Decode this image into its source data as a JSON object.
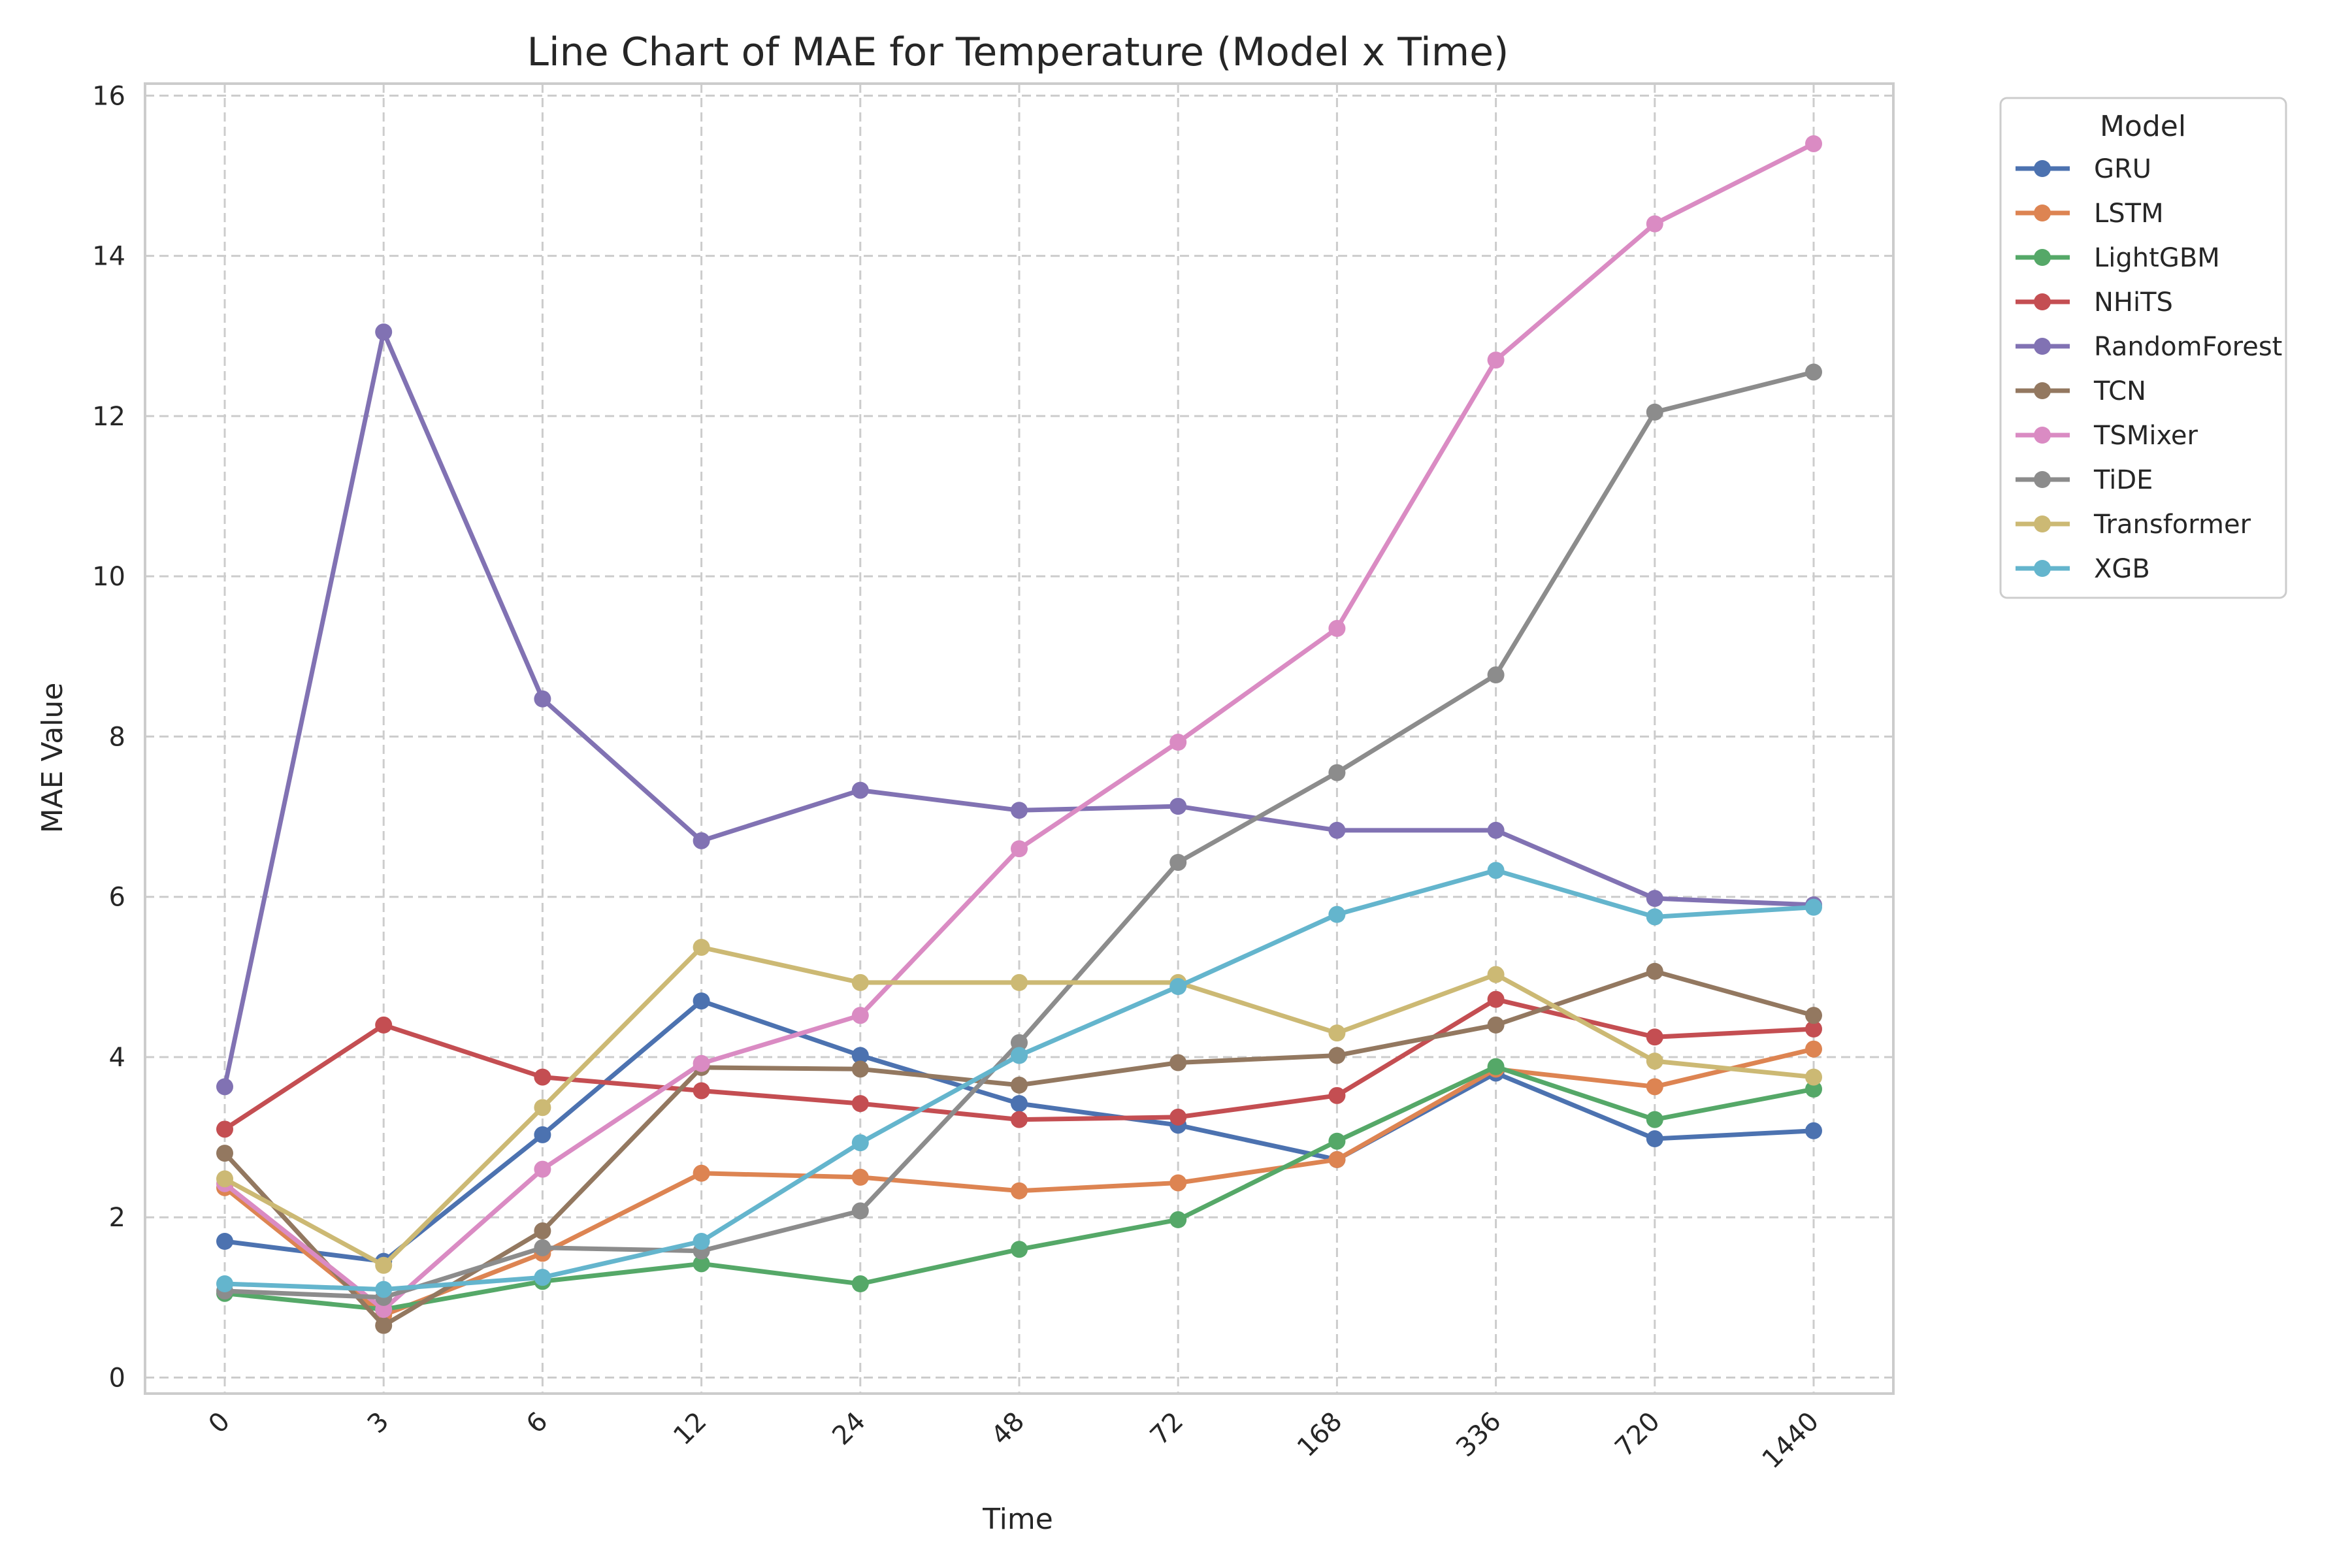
{
  "chart_data": {
    "type": "line",
    "title": "Line Chart of MAE for Temperature (Model x Time)",
    "xlabel": "Time",
    "ylabel": "MAE Value",
    "categories": [
      "0",
      "3",
      "6",
      "12",
      "24",
      "48",
      "72",
      "168",
      "336",
      "720",
      "1440"
    ],
    "ylim": [
      -0.2,
      16.15
    ],
    "yticks": [
      0,
      2,
      4,
      6,
      8,
      10,
      12,
      14,
      16
    ],
    "grid": true,
    "legend": {
      "title": "Model",
      "placement": "outside-top-right"
    },
    "series": [
      {
        "name": "GRU",
        "color": "#4c72b0",
        "values": [
          1.7,
          1.45,
          3.03,
          4.7,
          4.02,
          3.42,
          3.15,
          2.72,
          3.8,
          2.98,
          3.08
        ]
      },
      {
        "name": "LSTM",
        "color": "#dd8452",
        "values": [
          2.37,
          0.78,
          1.55,
          2.55,
          2.5,
          2.33,
          2.43,
          2.72,
          3.85,
          3.63,
          4.1
        ]
      },
      {
        "name": "LightGBM",
        "color": "#55a868",
        "values": [
          1.05,
          0.85,
          1.2,
          1.42,
          1.17,
          1.6,
          1.97,
          2.95,
          3.88,
          3.22,
          3.6
        ]
      },
      {
        "name": "NHiTS",
        "color": "#c44e52",
        "values": [
          3.1,
          4.4,
          3.75,
          3.58,
          3.42,
          3.22,
          3.25,
          3.52,
          4.72,
          4.25,
          4.35
        ]
      },
      {
        "name": "RandomForest",
        "color": "#8172b3",
        "values": [
          3.63,
          13.05,
          8.47,
          6.7,
          7.33,
          7.08,
          7.13,
          6.83,
          6.83,
          5.98,
          5.9
        ]
      },
      {
        "name": "TCN",
        "color": "#937860",
        "values": [
          2.8,
          0.65,
          1.83,
          3.87,
          3.85,
          3.65,
          3.93,
          4.02,
          4.4,
          5.07,
          4.52
        ]
      },
      {
        "name": "TSMixer",
        "color": "#da8bc3",
        "values": [
          2.42,
          0.85,
          2.6,
          3.92,
          4.52,
          6.6,
          7.93,
          9.35,
          12.7,
          14.4,
          15.4
        ]
      },
      {
        "name": "TiDE",
        "color": "#8c8c8c",
        "values": [
          1.08,
          1.0,
          1.62,
          1.58,
          2.08,
          4.18,
          6.43,
          7.55,
          8.77,
          12.05,
          12.55
        ]
      },
      {
        "name": "Transformer",
        "color": "#ccb974",
        "values": [
          2.48,
          1.4,
          3.37,
          5.37,
          4.93,
          4.93,
          4.93,
          4.3,
          5.03,
          3.95,
          3.75
        ]
      },
      {
        "name": "XGB",
        "color": "#64b5cd",
        "values": [
          1.17,
          1.1,
          1.25,
          1.7,
          2.93,
          4.02,
          4.88,
          5.78,
          6.33,
          5.75,
          5.87
        ]
      }
    ]
  }
}
